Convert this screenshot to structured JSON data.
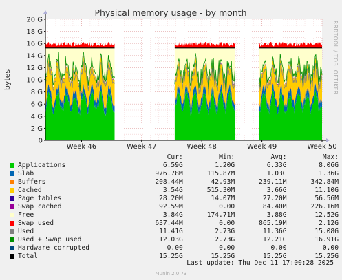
{
  "chart_data": {
    "type": "area",
    "title": "Physical memory usage - by month",
    "ylabel": "bytes",
    "ylim": [
      0,
      20
    ],
    "yunit": "G",
    "yticks": [
      "0",
      "2 G",
      "4 G",
      "6 G",
      "8 G",
      "10 G",
      "12 G",
      "14 G",
      "16 G",
      "18 G",
      "20 G"
    ],
    "xticks": [
      "Week 46",
      "Week 47",
      "Week 48",
      "Week 49",
      "Week 50"
    ],
    "x_range_weeks": [
      45.4,
      50.0
    ],
    "data_segments_weeks": [
      [
        45.4,
        46.55
      ],
      [
        47.55,
        48.55
      ],
      [
        48.95,
        50.0
      ]
    ],
    "total_gb": 15.25,
    "stack_typical_gb": {
      "applications": 6.6,
      "slab": 0.98,
      "buffers": 0.21,
      "cached": 3.5,
      "page_tables": 0.03,
      "swap_cached": 0.09,
      "free": 3.8,
      "swap_used": 0.64
    },
    "grid": true,
    "side_label": "RRDTOOL / TOBI OETIKER"
  },
  "legend": {
    "headers": [
      "Cur:",
      "Min:",
      "Avg:",
      "Max:"
    ],
    "items": [
      {
        "name": "Applications",
        "color": "#00cc00",
        "cur": "6.59G",
        "min": "1.20G",
        "avg": "6.33G",
        "max": "8.06G"
      },
      {
        "name": "Slab",
        "color": "#0066b3",
        "cur": "976.78M",
        "min": "115.87M",
        "avg": "1.03G",
        "max": "1.36G"
      },
      {
        "name": "Buffers",
        "color": "#ff8000",
        "cur": "208.44M",
        "min": "42.93M",
        "avg": "239.11M",
        "max": "342.84M"
      },
      {
        "name": "Cached",
        "color": "#ffcc00",
        "cur": "3.54G",
        "min": "515.30M",
        "avg": "3.66G",
        "max": "11.10G"
      },
      {
        "name": "Page tables",
        "color": "#330099",
        "cur": "28.20M",
        "min": "14.07M",
        "avg": "27.20M",
        "max": "56.56M"
      },
      {
        "name": "Swap cached",
        "color": "#990099",
        "cur": "92.59M",
        "min": "0.00",
        "avg": "84.40M",
        "max": "226.16M"
      },
      {
        "name": "Free",
        "color": "#ffffcc",
        "cur": "3.84G",
        "min": "174.71M",
        "avg": "3.88G",
        "max": "12.52G"
      },
      {
        "name": "Swap used",
        "color": "#ff0000",
        "cur": "637.44M",
        "min": "0.00",
        "avg": "865.19M",
        "max": "2.12G"
      },
      {
        "name": "Used",
        "color": "#808080",
        "cur": "11.41G",
        "min": "2.73G",
        "avg": "11.36G",
        "max": "15.08G"
      },
      {
        "name": "Used + Swap used",
        "color": "#008f00",
        "cur": "12.03G",
        "min": "2.73G",
        "avg": "12.21G",
        "max": "16.91G"
      },
      {
        "name": "Hardware corrupted",
        "color": "#00487d",
        "cur": "0.00",
        "min": "0.00",
        "avg": "0.00",
        "max": "0.00"
      },
      {
        "name": "Total",
        "color": "#000000",
        "cur": "15.25G",
        "min": "15.25G",
        "avg": "15.25G",
        "max": "15.25G"
      }
    ]
  },
  "footer": {
    "last_update": "Last update: Thu Dec 11 17:00:28 2025",
    "version": "Munin 2.0.73"
  }
}
